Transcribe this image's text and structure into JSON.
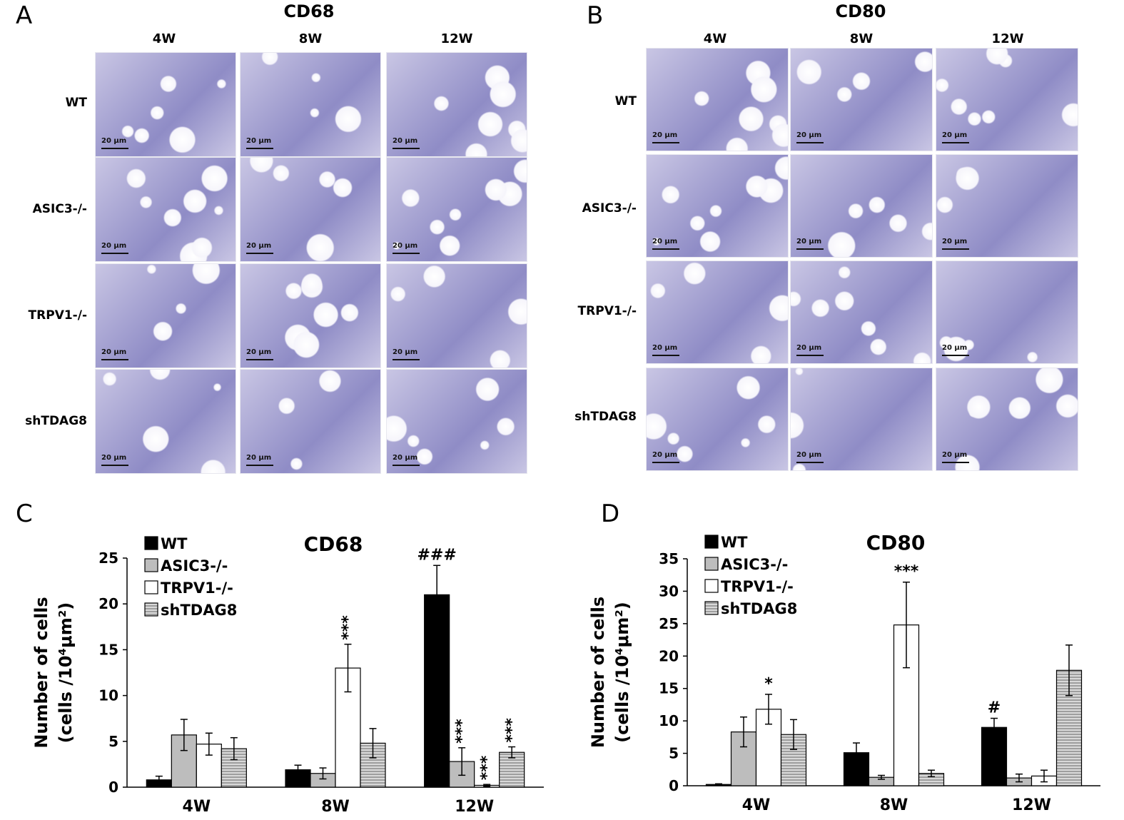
{
  "panels": {
    "A": {
      "letter": "A",
      "title": "CD68"
    },
    "B": {
      "letter": "B",
      "title": "CD80"
    },
    "C": {
      "letter": "C"
    },
    "D": {
      "letter": "D"
    }
  },
  "columns": [
    "4W",
    "8W",
    "12W"
  ],
  "rows": [
    "WT",
    "ASIC3-/-",
    "TRPV1-/-",
    "shTDAG8"
  ],
  "scale_bar": "20 μm",
  "colors": {
    "stain_bg": "#c9c6e4",
    "stain_dark": "#8f8cc6",
    "wt_fill": "#000000",
    "asic3_fill": "#bdbdbd",
    "trpv1_fill": "#ffffff",
    "shtdag8_fill": "#d9d9d9"
  },
  "chart_data": [
    {
      "type": "bar",
      "title": "CD68",
      "ylabel_line1": "Number of cells",
      "ylabel_line2": "(cells /10⁴μm²)",
      "categories": [
        "4W",
        "8W",
        "12W"
      ],
      "ylim": [
        0,
        25
      ],
      "yticks": [
        "0",
        "5",
        "10",
        "15",
        "20",
        "25"
      ],
      "series": [
        {
          "name": "WT",
          "values": [
            0.8,
            1.9,
            21.0
          ],
          "errors": [
            0.4,
            0.5,
            3.2
          ],
          "annotations": [
            "",
            "",
            "###"
          ]
        },
        {
          "name": "ASIC3-/-",
          "values": [
            5.7,
            1.5,
            2.8
          ],
          "errors": [
            1.7,
            0.6,
            1.5
          ],
          "annotations": [
            "",
            "",
            "***"
          ]
        },
        {
          "name": "TRPV1-/-",
          "values": [
            4.7,
            13.0,
            0.2
          ],
          "errors": [
            1.2,
            2.6,
            0.1
          ],
          "annotations": [
            "",
            "***",
            "***"
          ]
        },
        {
          "name": "shTDAG8",
          "values": [
            4.2,
            4.8,
            3.8
          ],
          "errors": [
            1.2,
            1.6,
            0.6
          ],
          "annotations": [
            "",
            "",
            "***"
          ]
        }
      ]
    },
    {
      "type": "bar",
      "title": "CD80",
      "ylabel_line1": "Number of cells",
      "ylabel_line2": "(cells /10⁴μm²)",
      "categories": [
        "4W",
        "8W",
        "12W"
      ],
      "ylim": [
        0,
        35
      ],
      "yticks": [
        "0",
        "5",
        "10",
        "15",
        "20",
        "25",
        "30",
        "35"
      ],
      "series": [
        {
          "name": "WT",
          "values": [
            0.2,
            5.1,
            9.0
          ],
          "errors": [
            0.1,
            1.5,
            1.4
          ],
          "annotations": [
            "",
            "",
            "#"
          ]
        },
        {
          "name": "ASIC3-/-",
          "values": [
            8.3,
            1.3,
            1.2
          ],
          "errors": [
            2.3,
            0.3,
            0.6
          ],
          "annotations": [
            "",
            "",
            ""
          ]
        },
        {
          "name": "TRPV1-/-",
          "values": [
            11.8,
            24.8,
            1.5
          ],
          "errors": [
            2.3,
            6.6,
            0.9
          ],
          "annotations": [
            "*",
            "***",
            ""
          ]
        },
        {
          "name": "shTDAG8",
          "values": [
            7.9,
            1.9,
            17.8
          ],
          "errors": [
            2.3,
            0.5,
            3.9
          ],
          "annotations": [
            "",
            "",
            ""
          ]
        }
      ]
    }
  ]
}
